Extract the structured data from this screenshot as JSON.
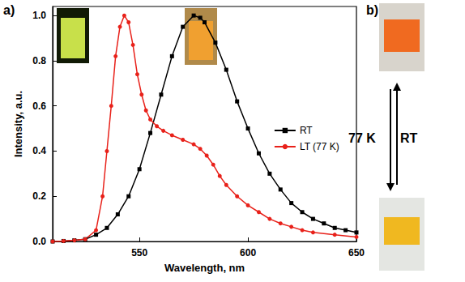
{
  "chart_data": {
    "type": "line",
    "x_label": "Wavelength, nm",
    "y_label": "Intensity, a.u.",
    "xlim": [
      510,
      650
    ],
    "xticks": [
      550,
      600,
      650
    ],
    "ylim": [
      0,
      1.04
    ],
    "yticks": [
      {
        "value": 0,
        "label": "0.0"
      },
      {
        "value": 0.2,
        "label": "0.2"
      },
      {
        "value": 0.4,
        "label": "0.4"
      },
      {
        "value": 0.6,
        "label": "0.6"
      },
      {
        "value": 0.8,
        "label": "0.8"
      },
      {
        "value": 1,
        "label": "1.0"
      }
    ],
    "grid": false,
    "legend": "right",
    "series": [
      {
        "name": "RT",
        "color": "#000000",
        "marker": "square",
        "line_style": "solid",
        "x": [
          510,
          515,
          520,
          525,
          530,
          535,
          540,
          545,
          550,
          555,
          560,
          565,
          570,
          575,
          578,
          580,
          585,
          590,
          595,
          600,
          605,
          610,
          615,
          620,
          625,
          630,
          635,
          640,
          645,
          650
        ],
        "values": [
          0.0,
          0.002,
          0.005,
          0.01,
          0.03,
          0.06,
          0.12,
          0.2,
          0.32,
          0.48,
          0.65,
          0.82,
          0.95,
          1.0,
          0.99,
          0.97,
          0.88,
          0.76,
          0.62,
          0.5,
          0.39,
          0.3,
          0.23,
          0.17,
          0.13,
          0.1,
          0.08,
          0.06,
          0.05,
          0.04
        ]
      },
      {
        "name": "LT (77 K)",
        "color": "#e8211a",
        "marker": "circle",
        "line_style": "solid",
        "x": [
          510,
          515,
          520,
          525,
          530,
          533,
          535,
          537,
          539,
          541,
          543,
          545,
          547,
          549,
          551,
          553,
          555,
          558,
          561,
          565,
          570,
          575,
          578,
          581,
          584,
          587,
          590,
          595,
          600,
          605,
          610,
          615,
          620,
          625,
          630,
          640,
          650
        ],
        "values": [
          0.0,
          0.002,
          0.005,
          0.01,
          0.05,
          0.2,
          0.4,
          0.6,
          0.82,
          0.95,
          1.0,
          0.97,
          0.87,
          0.74,
          0.65,
          0.58,
          0.54,
          0.51,
          0.49,
          0.47,
          0.45,
          0.43,
          0.41,
          0.38,
          0.34,
          0.29,
          0.25,
          0.2,
          0.16,
          0.13,
          0.1,
          0.08,
          0.065,
          0.05,
          0.04,
          0.03,
          0.02
        ]
      }
    ],
    "annotations": [
      {
        "text": "a)"
      },
      {
        "text": "b)"
      },
      {
        "text": "77 K"
      },
      {
        "text": "RT"
      }
    ]
  }
}
